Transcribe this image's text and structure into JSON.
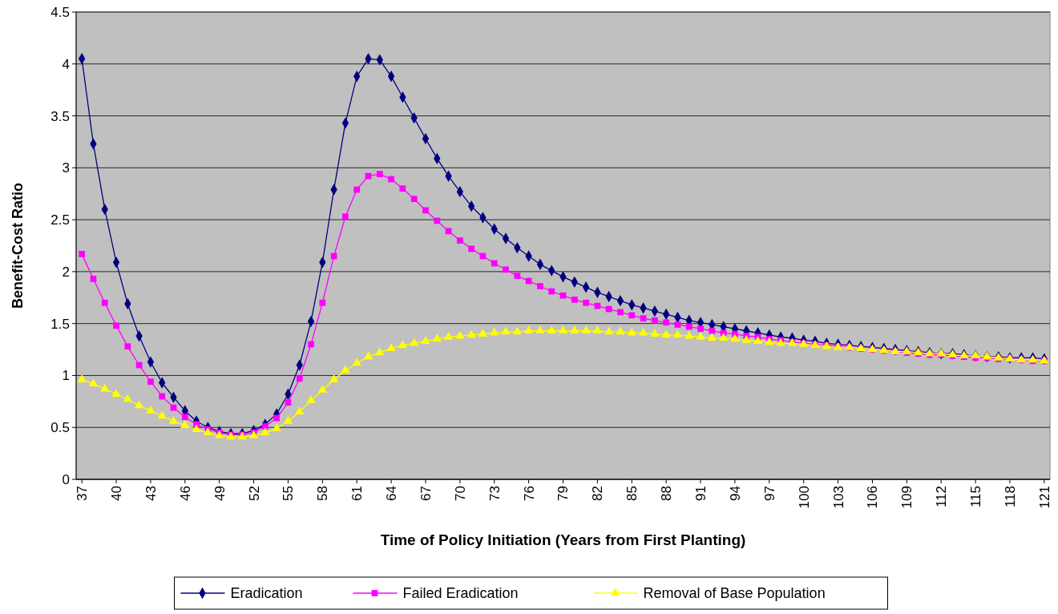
{
  "chart_data": {
    "type": "line",
    "xlabel": "Time of Policy Initiation (Years from First Planting)",
    "ylabel": "Benefit-Cost Ratio",
    "categories": [
      "37",
      null,
      null,
      "40",
      null,
      null,
      "43",
      null,
      null,
      "46",
      null,
      null,
      "49",
      null,
      null,
      "52",
      null,
      null,
      "55",
      null,
      null,
      "58",
      null,
      null,
      "61",
      null,
      null,
      "64",
      null,
      null,
      "67",
      null,
      null,
      "70",
      null,
      null,
      "73",
      null,
      null,
      "76",
      null,
      null,
      "79",
      null,
      null,
      "82",
      null,
      null,
      "85",
      null,
      null,
      "88",
      null,
      null,
      "91",
      null,
      null,
      "94",
      null,
      null,
      "97",
      null,
      null,
      "100",
      null,
      null,
      "103",
      null,
      null,
      "106",
      null,
      null,
      "109",
      null,
      null,
      "112",
      null,
      null,
      "115",
      null,
      null,
      "118",
      null,
      null,
      "121"
    ],
    "ylim": [
      0,
      4.5
    ],
    "yticks": [
      0,
      0.5,
      1,
      1.5,
      2,
      2.5,
      3,
      3.5,
      4,
      4.5
    ],
    "grid": "y",
    "legend": "bottom",
    "line_style": "solid",
    "series": [
      {
        "name": "Eradication",
        "color": "#000080",
        "marker": "diamond",
        "values": [
          4.05,
          3.23,
          2.6,
          2.09,
          1.69,
          1.38,
          1.13,
          0.93,
          0.79,
          0.66,
          0.56,
          0.5,
          0.46,
          0.44,
          0.44,
          0.47,
          0.53,
          0.63,
          0.82,
          1.1,
          1.52,
          2.09,
          2.79,
          3.43,
          3.88,
          4.05,
          4.04,
          3.88,
          3.68,
          3.48,
          3.28,
          3.09,
          2.92,
          2.77,
          2.63,
          2.52,
          2.41,
          2.32,
          2.23,
          2.15,
          2.07,
          2.01,
          1.95,
          1.9,
          1.85,
          1.8,
          1.76,
          1.72,
          1.68,
          1.65,
          1.62,
          1.59,
          1.56,
          1.53,
          1.51,
          1.49,
          1.47,
          1.45,
          1.43,
          1.41,
          1.39,
          1.37,
          1.36,
          1.34,
          1.33,
          1.31,
          1.3,
          1.29,
          1.28,
          1.27,
          1.26,
          1.25,
          1.24,
          1.23,
          1.22,
          1.21,
          1.21,
          1.2,
          1.19,
          1.18,
          1.18,
          1.17,
          1.17,
          1.17,
          1.16
        ]
      },
      {
        "name": "Failed Eradication",
        "color": "#ff00ff",
        "marker": "square",
        "values": [
          2.17,
          1.93,
          1.7,
          1.48,
          1.28,
          1.1,
          0.94,
          0.8,
          0.69,
          0.6,
          0.53,
          0.48,
          0.45,
          0.43,
          0.43,
          0.45,
          0.51,
          0.59,
          0.74,
          0.97,
          1.3,
          1.7,
          2.15,
          2.53,
          2.79,
          2.92,
          2.94,
          2.89,
          2.8,
          2.7,
          2.59,
          2.49,
          2.39,
          2.3,
          2.22,
          2.15,
          2.08,
          2.02,
          1.96,
          1.91,
          1.86,
          1.81,
          1.77,
          1.73,
          1.7,
          1.67,
          1.64,
          1.61,
          1.58,
          1.55,
          1.53,
          1.51,
          1.49,
          1.47,
          1.45,
          1.43,
          1.41,
          1.4,
          1.38,
          1.37,
          1.35,
          1.34,
          1.32,
          1.31,
          1.3,
          1.29,
          1.28,
          1.27,
          1.26,
          1.25,
          1.24,
          1.23,
          1.22,
          1.21,
          1.2,
          1.2,
          1.19,
          1.18,
          1.17,
          1.17,
          1.16,
          1.16,
          1.15,
          1.14,
          1.14
        ]
      },
      {
        "name": "Removal of Base Population",
        "color": "#ffff00",
        "marker": "triangle",
        "values": [
          0.96,
          0.92,
          0.87,
          0.82,
          0.77,
          0.71,
          0.66,
          0.61,
          0.56,
          0.52,
          0.48,
          0.45,
          0.42,
          0.41,
          0.41,
          0.42,
          0.45,
          0.49,
          0.56,
          0.65,
          0.76,
          0.86,
          0.96,
          1.05,
          1.12,
          1.18,
          1.22,
          1.26,
          1.29,
          1.31,
          1.33,
          1.35,
          1.37,
          1.38,
          1.39,
          1.4,
          1.41,
          1.42,
          1.42,
          1.43,
          1.43,
          1.43,
          1.43,
          1.43,
          1.43,
          1.43,
          1.42,
          1.42,
          1.41,
          1.41,
          1.4,
          1.39,
          1.39,
          1.38,
          1.37,
          1.36,
          1.36,
          1.35,
          1.34,
          1.33,
          1.32,
          1.31,
          1.31,
          1.3,
          1.29,
          1.28,
          1.27,
          1.27,
          1.26,
          1.25,
          1.24,
          1.23,
          1.23,
          1.22,
          1.21,
          1.21,
          1.2,
          1.19,
          1.19,
          1.18,
          1.17,
          1.16,
          1.15,
          1.15,
          1.14
        ]
      }
    ]
  }
}
